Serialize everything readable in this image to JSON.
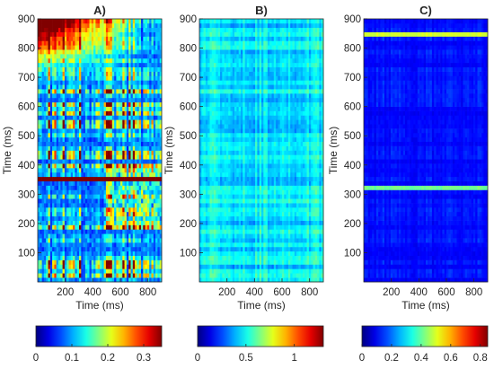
{
  "chart_data": [
    {
      "type": "heatmap",
      "title": "A)",
      "xlabel": "Time (ms)",
      "ylabel": "Time (ms)",
      "xlim": [
        0,
        900
      ],
      "ylim": [
        0,
        900
      ],
      "x_ticks": [
        200,
        400,
        600,
        800
      ],
      "y_ticks": [
        100,
        200,
        300,
        400,
        500,
        600,
        700,
        800,
        900
      ],
      "colorbar": {
        "min": 0,
        "max": 0.35,
        "ticks": [
          0,
          0.1,
          0.2,
          0.3
        ],
        "tick_labels": [
          "0",
          "0.1",
          "0.2",
          "0.3"
        ]
      },
      "pattern": "high values concentrated at top-left (Time 750-900 ms) and a bright horizontal band near 355 ms; block structure elsewhere",
      "base_level": 0.06
    },
    {
      "type": "heatmap",
      "title": "B)",
      "xlabel": "Time (ms)",
      "ylabel": "Time (ms)",
      "xlim": [
        0,
        900
      ],
      "ylim": [
        0,
        900
      ],
      "x_ticks": [
        200,
        400,
        600,
        800
      ],
      "y_ticks": [
        100,
        200,
        300,
        400,
        500,
        600,
        700,
        800,
        900
      ],
      "colorbar": {
        "min": 0,
        "max": 1.3,
        "ticks": [
          0,
          0.5,
          1
        ],
        "tick_labels": [
          "0",
          "0.5",
          "1"
        ]
      },
      "pattern": "fine uniform striped texture, values mostly low (blue)",
      "base_level": 0.28
    },
    {
      "type": "heatmap",
      "title": "C)",
      "xlabel": "Time (ms)",
      "ylabel": "Time (ms)",
      "xlim": [
        0,
        900
      ],
      "ylim": [
        0,
        900
      ],
      "x_ticks": [
        200,
        400,
        600,
        800
      ],
      "y_ticks": [
        100,
        200,
        300,
        400,
        500,
        600,
        700,
        800,
        900
      ],
      "colorbar": {
        "min": 0,
        "max": 0.85,
        "ticks": [
          0,
          0.2,
          0.4,
          0.6,
          0.8
        ],
        "tick_labels": [
          "0",
          "0.2",
          "0.4",
          "0.6",
          "0.8"
        ]
      },
      "pattern": "mostly dark blue low values with thin bright lines near 320 ms and 850 ms",
      "base_level": 0.12
    }
  ]
}
